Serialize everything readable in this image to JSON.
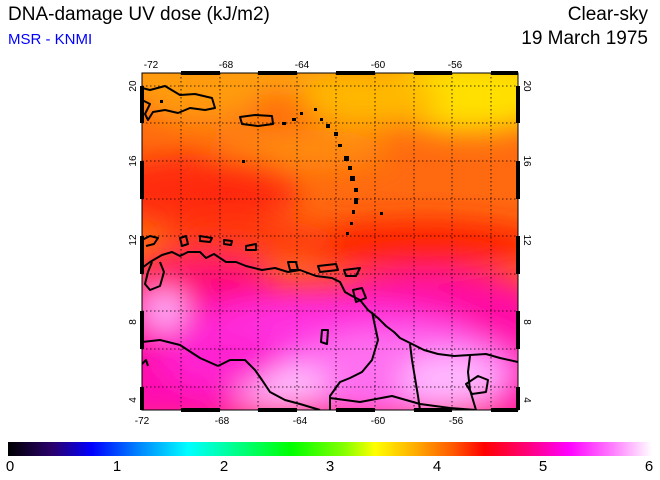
{
  "header": {
    "title": "DNA-damage UV dose (kJ/m2)",
    "source": "MSR - KNMI",
    "condition": "Clear-sky",
    "date": "19 March 1975"
  },
  "map": {
    "region": "Caribbean / northern South America",
    "lon_ticks": [
      "-72",
      "-68",
      "-64",
      "-60",
      "-56"
    ],
    "lat_ticks": [
      "20",
      "16",
      "12",
      "8",
      "4"
    ],
    "lon_range": [
      -72,
      -52
    ],
    "lat_range": [
      3.5,
      20.5
    ],
    "gridlines": true,
    "gridline_style": "dotted"
  },
  "colorbar": {
    "labels": [
      "0",
      "1",
      "2",
      "3",
      "4",
      "5",
      "6"
    ],
    "range": [
      0,
      6
    ],
    "colors": [
      "#000000",
      "#2a006e",
      "#0000ff",
      "#0080ff",
      "#00ffff",
      "#00ff80",
      "#00ff00",
      "#80ff00",
      "#ffff00",
      "#ffb000",
      "#ff5a00",
      "#ff0000",
      "#ff0080",
      "#ff00ff",
      "#ff80ff",
      "#ffffff"
    ]
  }
}
